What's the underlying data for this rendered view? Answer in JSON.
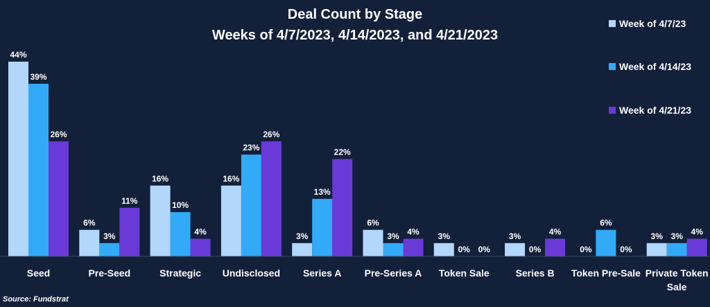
{
  "chart_data": {
    "type": "bar",
    "title": "Deal Count by Stage",
    "subtitle": "Weeks of 4/7/2023, 4/14/2023, and 4/21/2023",
    "categories": [
      "Seed",
      "Pre-Seed",
      "Strategic",
      "Undisclosed",
      "Series A",
      "Pre-Series A",
      "Token Sale",
      "Series B",
      "Token Pre-Sale",
      "Private Token Sale"
    ],
    "series": [
      {
        "name": "Week of 4/7/23",
        "color": "#b3d7fb",
        "values": [
          44,
          6,
          16,
          16,
          3,
          6,
          3,
          3,
          0,
          3
        ]
      },
      {
        "name": "Week of 4/14/23",
        "color": "#33aaf7",
        "values": [
          39,
          3,
          10,
          23,
          13,
          3,
          0,
          0,
          6,
          3
        ]
      },
      {
        "name": "Week of 4/21/23",
        "color": "#6a3ad8",
        "values": [
          26,
          11,
          4,
          26,
          22,
          4,
          0,
          4,
          0,
          4
        ]
      }
    ],
    "value_suffix": "%",
    "ylim": [
      0,
      44
    ],
    "grid": false,
    "legend_position": "right"
  },
  "source": "Source: Fundstrat"
}
